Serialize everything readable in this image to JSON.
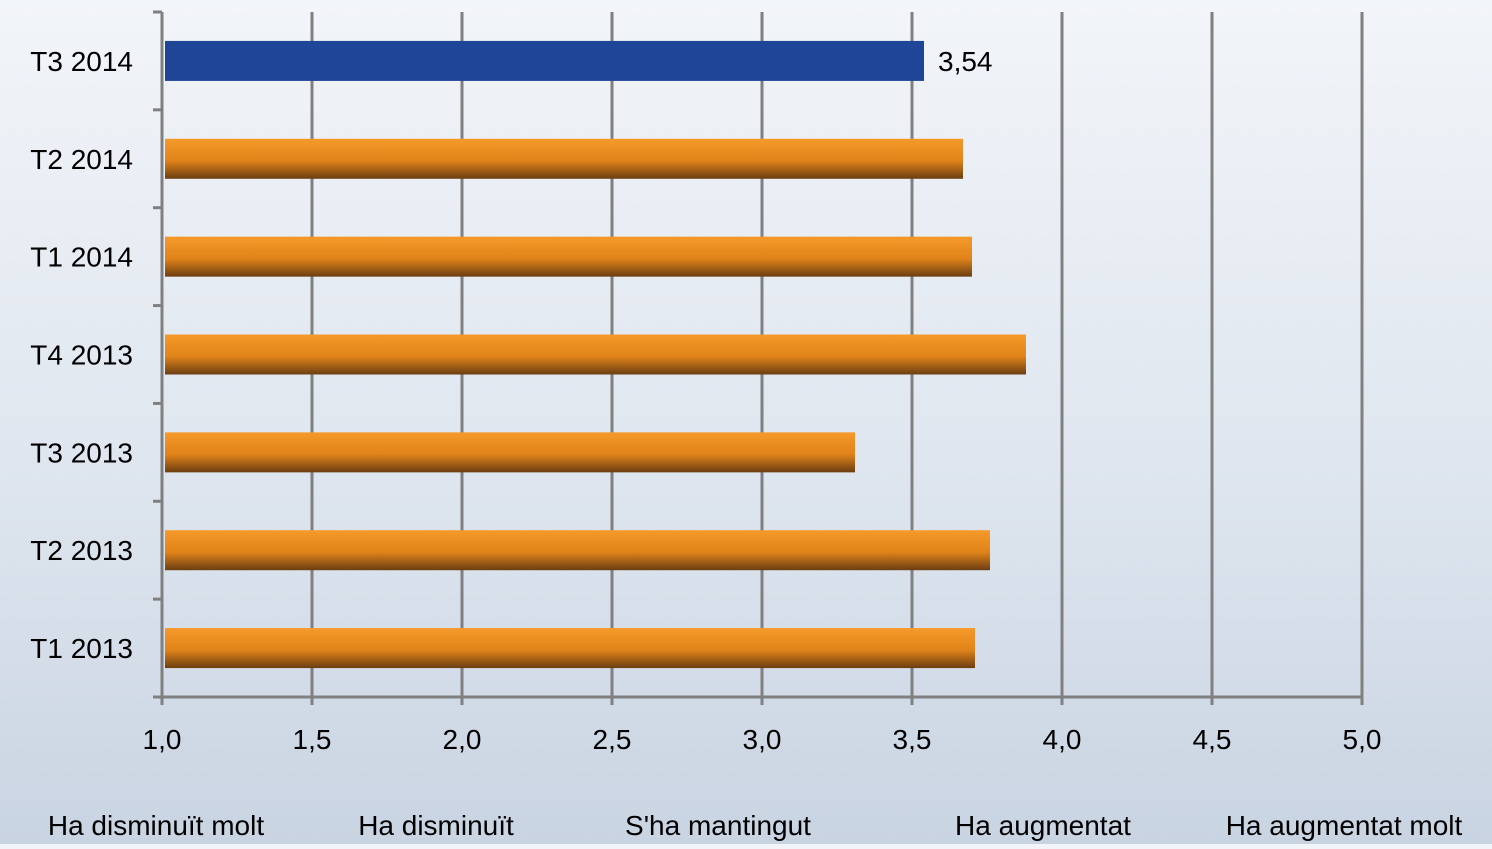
{
  "chart_data": {
    "type": "bar",
    "orientation": "horizontal",
    "title": "",
    "xlabel": "",
    "ylabel": "",
    "categories": [
      "T3 2014",
      "T2 2014",
      "T1 2014",
      "T4 2013",
      "T3 2013",
      "T2 2013",
      "T1 2013"
    ],
    "values": [
      3.54,
      3.67,
      3.7,
      3.88,
      3.31,
      3.76,
      3.71
    ],
    "highlight_index": 0,
    "data_labels": [
      "3,54",
      "",
      "",
      "",
      "",
      "",
      ""
    ],
    "xlim": [
      1.0,
      5.0
    ],
    "xticks": [
      1.0,
      1.5,
      2.0,
      2.5,
      3.0,
      3.5,
      4.0,
      4.5,
      5.0
    ],
    "xtick_labels": [
      "1,0",
      "1,5",
      "2,0",
      "2,5",
      "3,0",
      "3,5",
      "4,0",
      "4,5",
      "5,0"
    ],
    "scale_labels": [
      "Ha disminuït molt",
      "Ha disminuït",
      "S'ha mantingut",
      "Ha augmentat",
      "Ha augmentat molt"
    ],
    "grid": true,
    "legend": "none",
    "colors": {
      "highlight": "#1f4596",
      "bar_top": "#f59a2a",
      "bar_mid": "#e08319",
      "bar_bottom": "#6b3e12",
      "grid": "#808080",
      "axis": "#808080"
    }
  }
}
